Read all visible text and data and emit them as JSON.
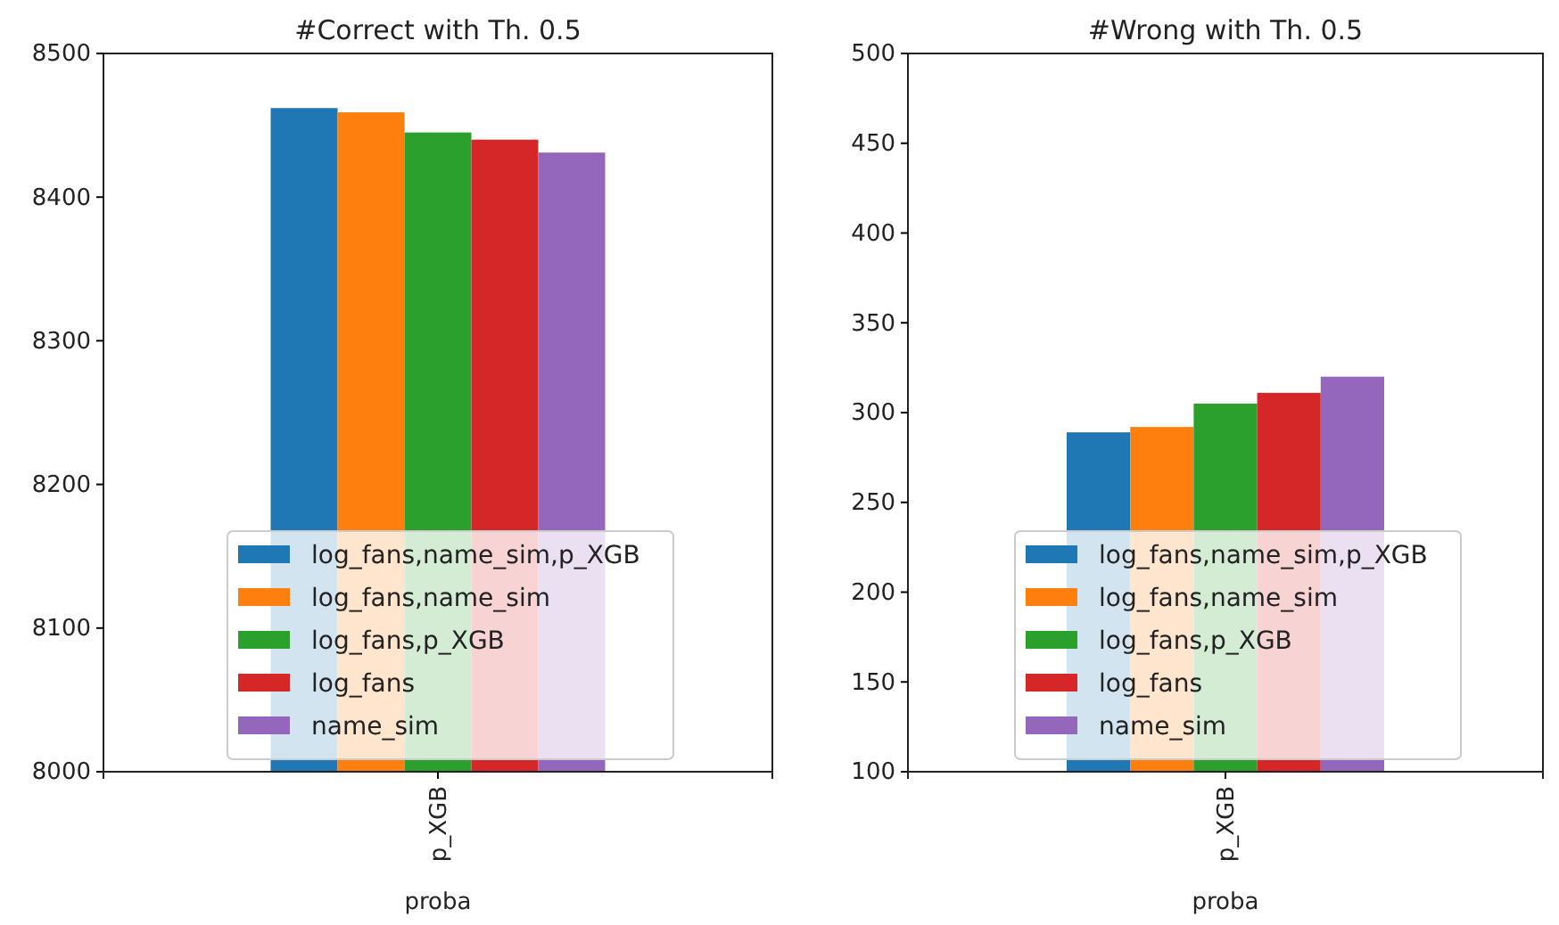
{
  "chart_data": [
    {
      "type": "bar",
      "title": "#Correct with Th. 0.5",
      "xlabel": "proba",
      "categories": [
        "p_XGB"
      ],
      "ylim": [
        8000,
        8500
      ],
      "yticks": [
        8000,
        8100,
        8200,
        8300,
        8400,
        8500
      ],
      "legend": "bottom",
      "series": [
        {
          "name": "log_fans,name_sim,p_XGB",
          "color": "#1f77b4",
          "values": [
            8462
          ]
        },
        {
          "name": "log_fans,name_sim",
          "color": "#ff7f0e",
          "values": [
            8459
          ]
        },
        {
          "name": "log_fans,p_XGB",
          "color": "#2ca02c",
          "values": [
            8445
          ]
        },
        {
          "name": "log_fans",
          "color": "#d62728",
          "values": [
            8440
          ]
        },
        {
          "name": "name_sim",
          "color": "#9467bd",
          "values": [
            8431
          ]
        }
      ]
    },
    {
      "type": "bar",
      "title": "#Wrong with Th. 0.5",
      "xlabel": "proba",
      "categories": [
        "p_XGB"
      ],
      "ylim": [
        100,
        500
      ],
      "yticks": [
        100,
        150,
        200,
        250,
        300,
        350,
        400,
        450,
        500
      ],
      "legend": "bottom",
      "series": [
        {
          "name": "log_fans,name_sim,p_XGB",
          "color": "#1f77b4",
          "values": [
            289
          ]
        },
        {
          "name": "log_fans,name_sim",
          "color": "#ff7f0e",
          "values": [
            292
          ]
        },
        {
          "name": "log_fans,p_XGB",
          "color": "#2ca02c",
          "values": [
            305
          ]
        },
        {
          "name": "log_fans",
          "color": "#d62728",
          "values": [
            311
          ]
        },
        {
          "name": "name_sim",
          "color": "#9467bd",
          "values": [
            320
          ]
        }
      ]
    }
  ]
}
